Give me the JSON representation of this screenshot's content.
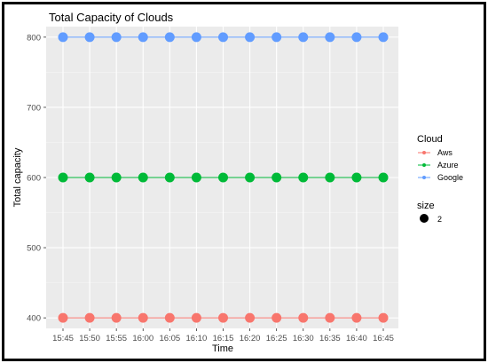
{
  "chart_data": {
    "type": "line",
    "title": "Total Capacity of Clouds",
    "xlabel": "Time",
    "ylabel": "Total capacity",
    "categories": [
      "15:45",
      "15:50",
      "15:55",
      "16:00",
      "16:05",
      "16:10",
      "16:15",
      "16:20",
      "16:25",
      "16:30",
      "16:35",
      "16:40",
      "16:45"
    ],
    "yticks": [
      400,
      500,
      600,
      700,
      800
    ],
    "ylim": [
      385,
      815
    ],
    "grid": true,
    "legend_position": "right",
    "series": [
      {
        "name": "Aws",
        "color": "#F8766D",
        "values": [
          400,
          400,
          400,
          400,
          400,
          400,
          400,
          400,
          400,
          400,
          400,
          400,
          400
        ]
      },
      {
        "name": "Azure",
        "color": "#00BA38",
        "values": [
          600,
          600,
          600,
          600,
          600,
          600,
          600,
          600,
          600,
          600,
          600,
          600,
          600
        ]
      },
      {
        "name": "Google",
        "color": "#619CFF",
        "values": [
          800,
          800,
          800,
          800,
          800,
          800,
          800,
          800,
          800,
          800,
          800,
          800,
          800
        ]
      }
    ],
    "legend": {
      "color_title": "Cloud",
      "size_title": "size",
      "size_label": "2"
    }
  }
}
